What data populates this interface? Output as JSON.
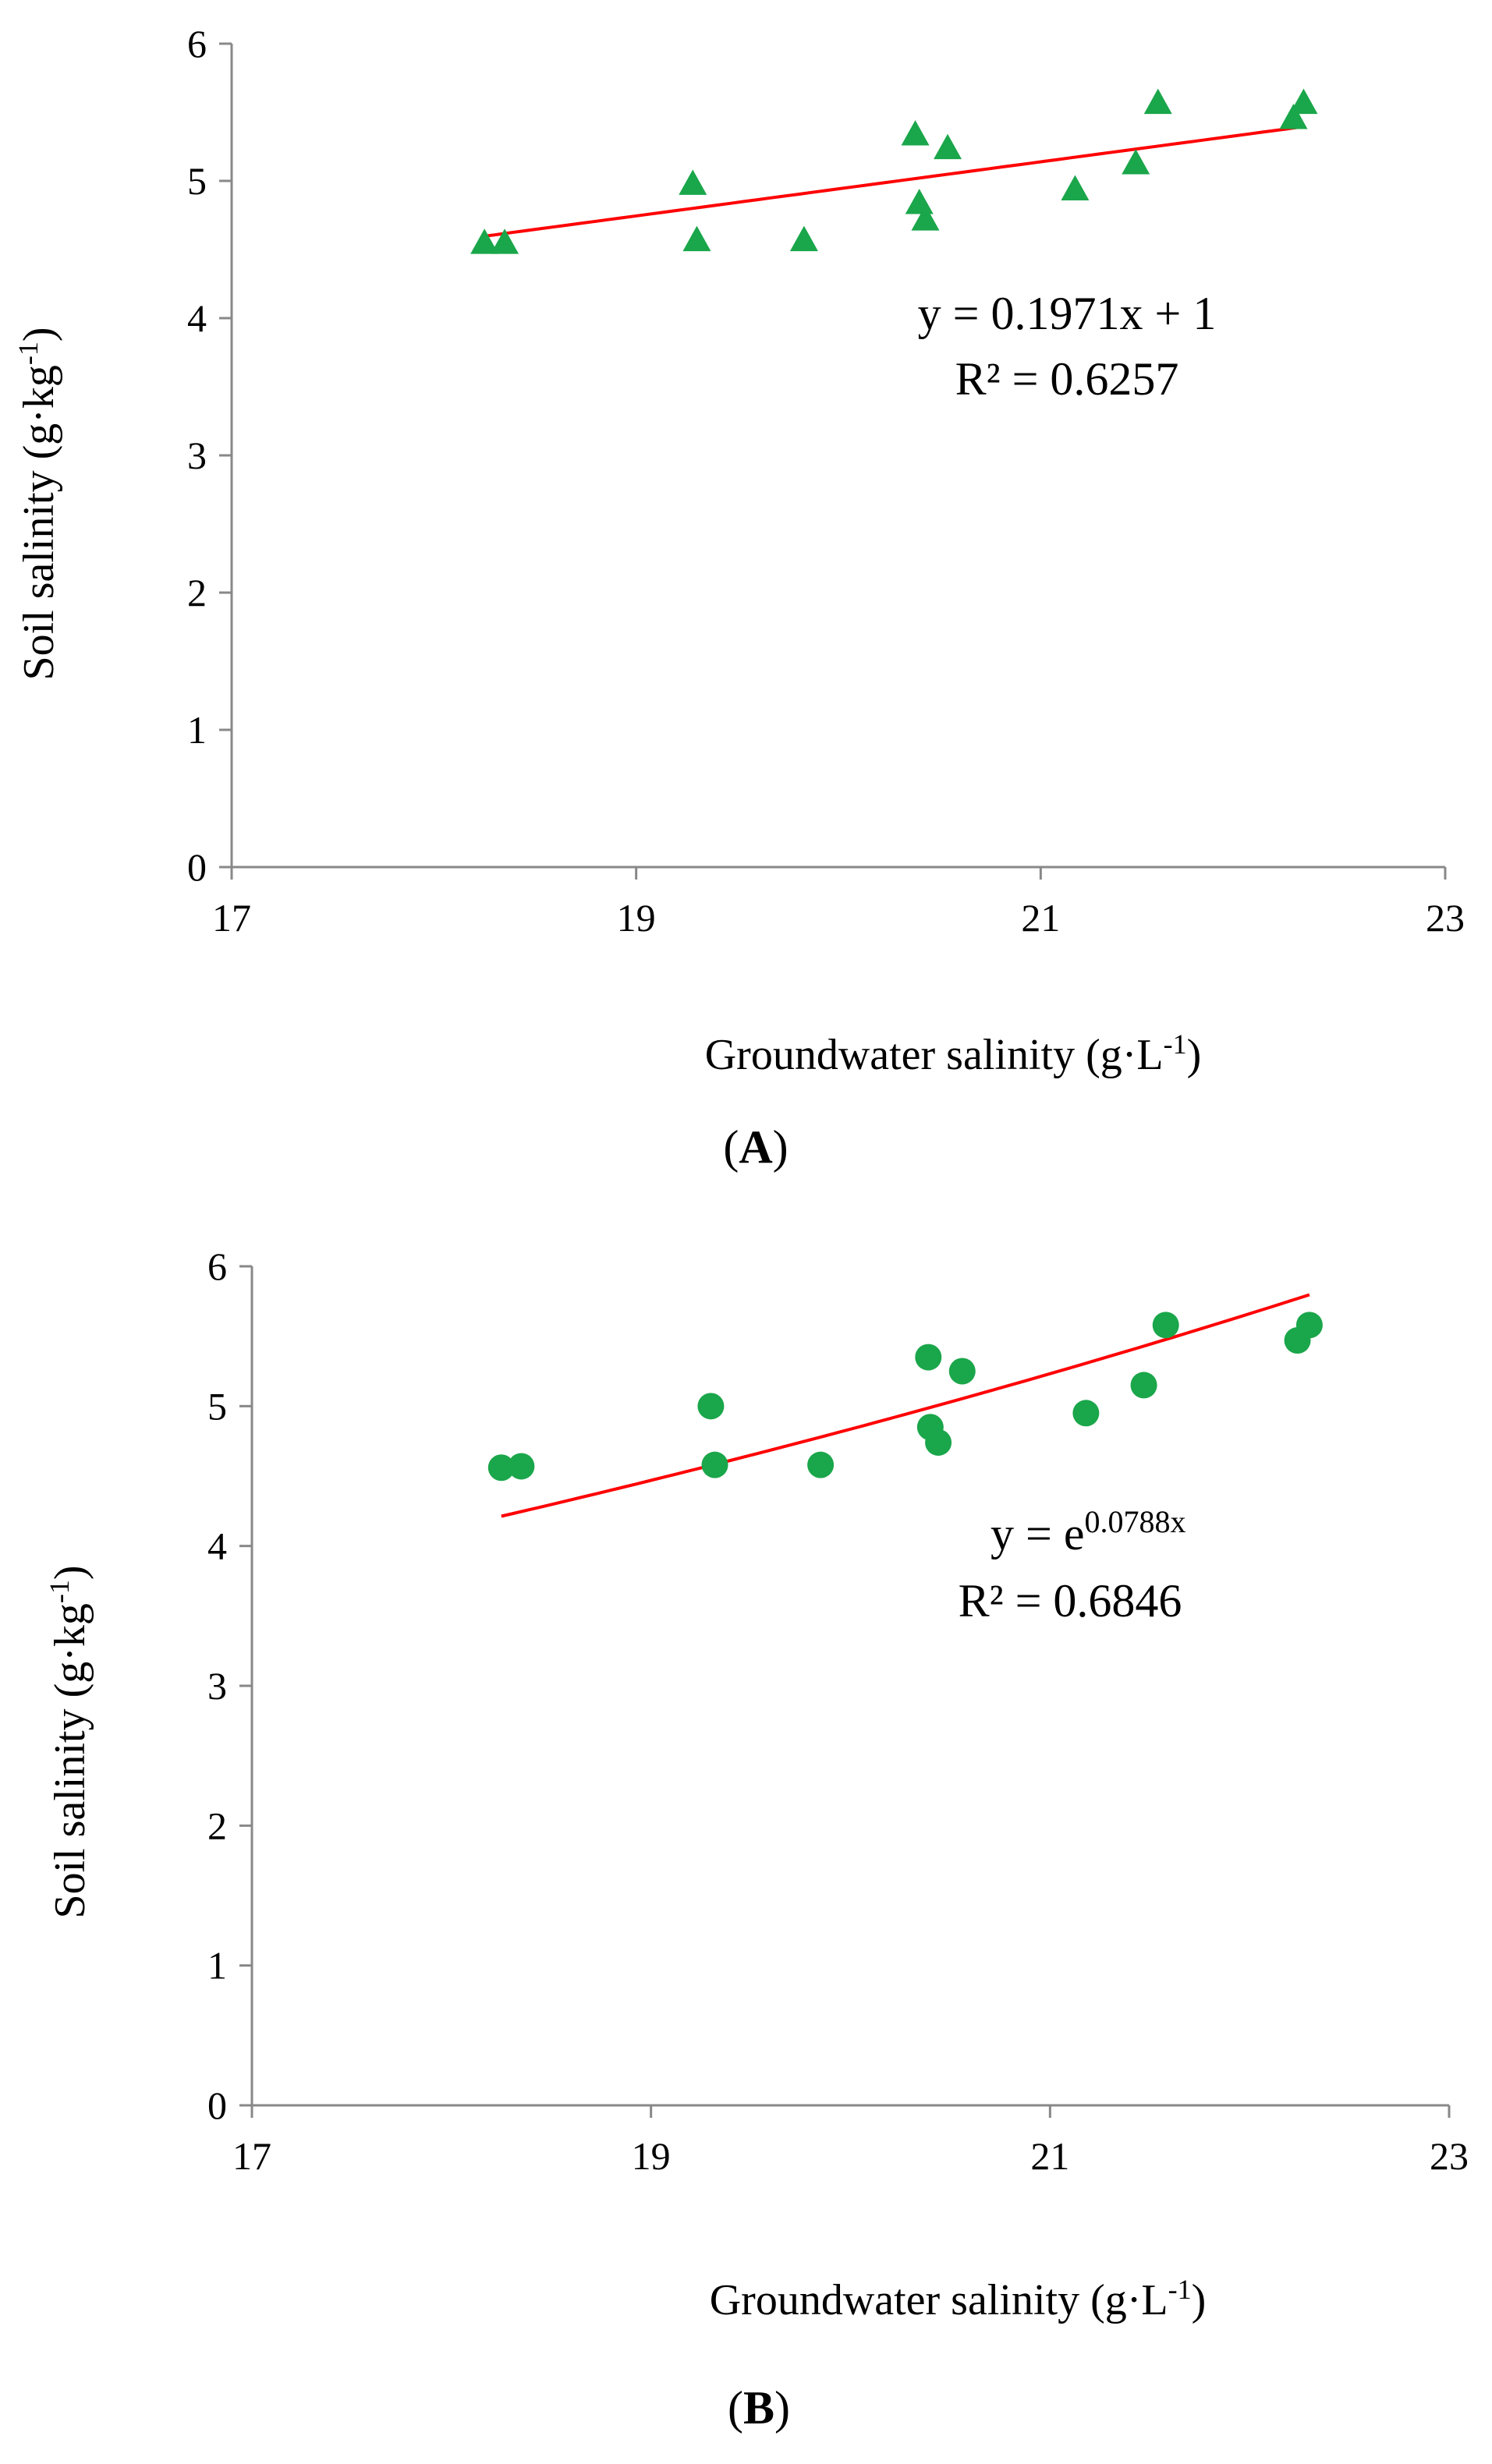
{
  "chart_data": [
    {
      "type": "scatter",
      "panel_label_prefix": "(",
      "panel_label_letter": "A",
      "panel_label_suffix": ")",
      "xlabel_main": "Groundwater  salinity  (g",
      "xlabel_dot": "·",
      "xlabel_unit": "L",
      "xlabel_exp": "-1",
      "xlabel_close": ")",
      "ylabel_main": "Soil salinity (g",
      "ylabel_dot": "·",
      "ylabel_unit": "kg",
      "ylabel_exp": "-1",
      "ylabel_close": ")",
      "xlim": [
        17,
        23
      ],
      "ylim": [
        0,
        6
      ],
      "xticks": [
        "17",
        "19",
        "21",
        "23"
      ],
      "yticks": [
        "0",
        "1",
        "2",
        "3",
        "4",
        "5",
        "6"
      ],
      "marker": "triangle",
      "marker_color": "#1aa64a",
      "line_color": "#ff0000",
      "fit": {
        "kind": "linear",
        "slope": 0.1971,
        "intercept": 1,
        "x_range": [
          18.25,
          22.3
        ]
      },
      "equation": "y = 0.1971x + 1",
      "r2_text": "R² = 0.6257",
      "points": [
        {
          "x": 18.25,
          "y": 4.55
        },
        {
          "x": 18.35,
          "y": 4.55
        },
        {
          "x": 19.28,
          "y": 4.98
        },
        {
          "x": 19.3,
          "y": 4.57
        },
        {
          "x": 19.83,
          "y": 4.57
        },
        {
          "x": 20.38,
          "y": 5.34
        },
        {
          "x": 20.4,
          "y": 4.84
        },
        {
          "x": 20.43,
          "y": 4.72
        },
        {
          "x": 20.54,
          "y": 5.24
        },
        {
          "x": 21.17,
          "y": 4.94
        },
        {
          "x": 21.47,
          "y": 5.13
        },
        {
          "x": 21.58,
          "y": 5.57
        },
        {
          "x": 22.25,
          "y": 5.46
        },
        {
          "x": 22.3,
          "y": 5.57
        }
      ]
    },
    {
      "type": "scatter",
      "panel_label_prefix": "(",
      "panel_label_letter": "B",
      "panel_label_suffix": ")",
      "xlabel_main": "Groundwater  salinity  (g",
      "xlabel_dot": "·",
      "xlabel_unit": "L",
      "xlabel_exp": "-1",
      "xlabel_close": ")",
      "ylabel_main": "Soil salinity (g",
      "ylabel_dot": "·",
      "ylabel_unit": "kg",
      "ylabel_exp": "-1",
      "ylabel_close": ")",
      "xlim": [
        17,
        23
      ],
      "ylim": [
        0,
        6
      ],
      "xticks": [
        "17",
        "19",
        "21",
        "23"
      ],
      "yticks": [
        "0",
        "1",
        "2",
        "3",
        "4",
        "5",
        "6"
      ],
      "marker": "circle",
      "marker_color": "#1aa64a",
      "line_color": "#ff0000",
      "fit": {
        "kind": "exponential",
        "coefficient": 0.0788,
        "x_range": [
          18.25,
          22.3
        ]
      },
      "equation_base": "y = e",
      "equation_exp": "0.0788x",
      "r2_text": "R² = 0.6846",
      "points": [
        {
          "x": 18.25,
          "y": 4.56
        },
        {
          "x": 18.35,
          "y": 4.57
        },
        {
          "x": 19.3,
          "y": 5.0
        },
        {
          "x": 19.32,
          "y": 4.58
        },
        {
          "x": 19.85,
          "y": 4.58
        },
        {
          "x": 20.39,
          "y": 5.35
        },
        {
          "x": 20.4,
          "y": 4.85
        },
        {
          "x": 20.44,
          "y": 4.74
        },
        {
          "x": 20.56,
          "y": 5.25
        },
        {
          "x": 21.18,
          "y": 4.95
        },
        {
          "x": 21.47,
          "y": 5.15
        },
        {
          "x": 21.58,
          "y": 5.58
        },
        {
          "x": 22.24,
          "y": 5.47
        },
        {
          "x": 22.3,
          "y": 5.58
        }
      ]
    }
  ]
}
